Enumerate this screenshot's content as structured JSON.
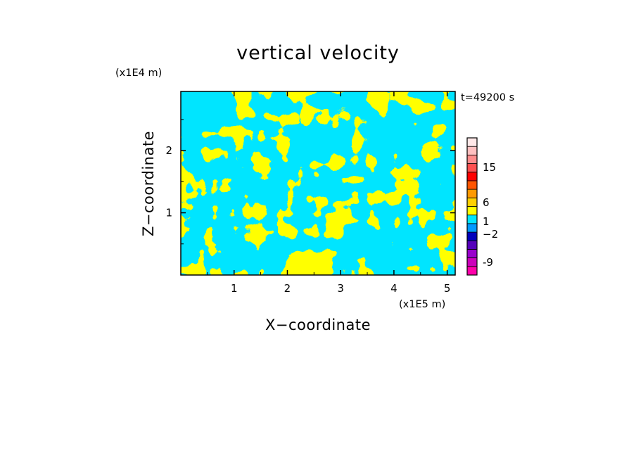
{
  "chart_data": {
    "type": "heatmap",
    "title": "vertical velocity",
    "xlabel": "X−coordinate",
    "ylabel": "Z−coordinate",
    "x_unit": "(x1E5 m)",
    "y_unit": "(x1E4 m)",
    "time_label": "t=49200 s",
    "xlim": [
      0.0,
      5.15
    ],
    "ylim": [
      0.0,
      2.95
    ],
    "x_ticks": [
      1,
      2,
      3,
      4,
      5
    ],
    "y_ticks": [
      1,
      2
    ],
    "x_tick_labels": [
      "1",
      "2",
      "3",
      "4",
      "5"
    ],
    "y_tick_labels": [
      "1",
      "2"
    ],
    "field_colors": {
      "negative": "#00e5ff",
      "positive": "#ffff00"
    },
    "colorbar": {
      "colors": [
        "#ff00aa",
        "#cc00bb",
        "#9900cc",
        "#5500bb",
        "#0000bb",
        "#0099ff",
        "#00e5ff",
        "#ffff00",
        "#ffd000",
        "#ff9900",
        "#ff5500",
        "#ff0000",
        "#ff5050",
        "#ff8c8c",
        "#ffc0c0",
        "#ffe8e8"
      ],
      "tick_labels": [
        "-9",
        "−2",
        "1",
        "6",
        "15"
      ]
    }
  }
}
